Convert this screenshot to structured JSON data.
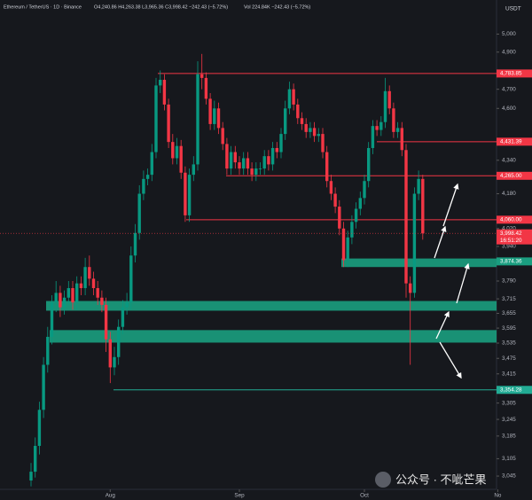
{
  "chart_data": {
    "type": "candlestick",
    "title": "Ethereum / TetherUS · 1D · Binance",
    "ohlc_header": "O4,240.86 H4,263.38 L3,965.36 C3,998.42 −242.43 (−5.72%)",
    "volume_header": "Vol 224.84K −242.43 (−5.72%)",
    "currency": "USDT",
    "log_scale": true,
    "up_color": "#089981",
    "down_color": "#f23645",
    "ylim": [
      3000,
      5195
    ],
    "yticks": [
      {
        "value": 5000,
        "label": "5,000"
      },
      {
        "value": 4900,
        "label": "4,900"
      },
      {
        "value": 4700,
        "label": "4,700"
      },
      {
        "value": 4600,
        "label": "4,600"
      },
      {
        "value": 4340,
        "label": "4,340"
      },
      {
        "value": 4180,
        "label": "4,180"
      },
      {
        "value": 4020,
        "label": "4,020"
      },
      {
        "value": 3940,
        "label": "3,940"
      },
      {
        "value": 3790,
        "label": "3,790"
      },
      {
        "value": 3715,
        "label": "3,715"
      },
      {
        "value": 3655,
        "label": "3,655"
      },
      {
        "value": 3595,
        "label": "3,595"
      },
      {
        "value": 3535,
        "label": "3,535"
      },
      {
        "value": 3475,
        "label": "3,475"
      },
      {
        "value": 3415,
        "label": "3,415"
      },
      {
        "value": 3305,
        "label": "3,305"
      },
      {
        "value": 3245,
        "label": "3,245"
      },
      {
        "value": 3185,
        "label": "3,185"
      },
      {
        "value": 3105,
        "label": "3,105"
      },
      {
        "value": 3045,
        "label": "3,045"
      }
    ],
    "xticks": [
      {
        "value": 19,
        "label": "Aug"
      },
      {
        "value": 50,
        "label": "Sep"
      },
      {
        "value": 80,
        "label": "Oct"
      },
      {
        "value": 112,
        "label": "No"
      }
    ],
    "open": [
      3030,
      3060,
      3150,
      3280,
      3450,
      3560,
      3700,
      3740,
      3680,
      3720,
      3760,
      3700,
      3780,
      3760,
      3850,
      3800,
      3760,
      3720,
      3690,
      3550,
      3440,
      3480,
      3600,
      3680,
      3700,
      3900,
      4000,
      4180,
      4250,
      4270,
      4380,
      4720,
      4750,
      4620,
      4430,
      4350,
      4410,
      4280,
      4080,
      4270,
      4320,
      4780,
      4760,
      4650,
      4520,
      4600,
      4500,
      4420,
      4300,
      4380,
      4330,
      4300,
      4350,
      4300,
      4270,
      4300,
      4300,
      4360,
      4320,
      4400,
      4380,
      4470,
      4600,
      4700,
      4620,
      4550,
      4520,
      4480,
      4500,
      4460,
      4470,
      4380,
      4240,
      4180,
      4120,
      4020,
      3880,
      3980,
      4050,
      4110,
      4160,
      4240,
      4400,
      4510,
      4490,
      4530,
      4690,
      4600,
      4480,
      4500,
      4390,
      3780,
      3740,
      4180,
      4250
    ],
    "high": [
      3090,
      3180,
      3310,
      3480,
      3600,
      3730,
      3790,
      3770,
      3750,
      3790,
      3790,
      3810,
      3810,
      3890,
      3900,
      3830,
      3790,
      3750,
      3720,
      3580,
      3520,
      3630,
      3710,
      3740,
      3940,
      4040,
      4220,
      4290,
      4300,
      4420,
      4760,
      4800,
      4780,
      4650,
      4470,
      4450,
      4440,
      4310,
      4300,
      4360,
      4850,
      4890,
      4790,
      4680,
      4640,
      4630,
      4530,
      4450,
      4410,
      4410,
      4360,
      4380,
      4380,
      4330,
      4330,
      4330,
      4390,
      4390,
      4430,
      4430,
      4500,
      4640,
      4740,
      4730,
      4650,
      4580,
      4550,
      4530,
      4530,
      4500,
      4500,
      4410,
      4270,
      4210,
      4150,
      4050,
      4010,
      4080,
      4140,
      4190,
      4270,
      4430,
      4540,
      4540,
      4560,
      4760,
      4720,
      4630,
      4530,
      4530,
      4420,
      3810,
      4210,
      4290,
      4270
    ],
    "low": [
      3010,
      3040,
      3120,
      3250,
      3420,
      3530,
      3660,
      3640,
      3650,
      3690,
      3670,
      3670,
      3730,
      3730,
      3770,
      3730,
      3690,
      3660,
      3500,
      3380,
      3410,
      3450,
      3570,
      3650,
      3670,
      3870,
      3970,
      4150,
      4220,
      4240,
      4350,
      4680,
      4590,
      4400,
      4320,
      4320,
      4250,
      4050,
      4050,
      4240,
      4290,
      4700,
      4620,
      4490,
      4490,
      4470,
      4390,
      4270,
      4270,
      4300,
      4270,
      4270,
      4270,
      4240,
      4240,
      4270,
      4270,
      4290,
      4290,
      4350,
      4350,
      4440,
      4570,
      4590,
      4520,
      4490,
      4450,
      4450,
      4430,
      4430,
      4350,
      4210,
      4150,
      4090,
      3990,
      3850,
      3850,
      3950,
      4020,
      4080,
      4130,
      4210,
      4370,
      4460,
      4460,
      4500,
      4570,
      4450,
      4450,
      4360,
      3720,
      3450,
      3720,
      4150,
      3970
    ],
    "close": [
      3060,
      3150,
      3280,
      3450,
      3560,
      3700,
      3740,
      3680,
      3720,
      3760,
      3700,
      3780,
      3760,
      3850,
      3800,
      3760,
      3720,
      3690,
      3550,
      3440,
      3480,
      3600,
      3680,
      3700,
      3900,
      4000,
      4180,
      4250,
      4270,
      4380,
      4720,
      4750,
      4620,
      4430,
      4350,
      4410,
      4280,
      4080,
      4270,
      4320,
      4780,
      4760,
      4650,
      4520,
      4600,
      4500,
      4420,
      4300,
      4380,
      4330,
      4300,
      4350,
      4300,
      4270,
      4300,
      4300,
      4360,
      4320,
      4400,
      4380,
      4470,
      4600,
      4700,
      4620,
      4550,
      4520,
      4480,
      4500,
      4460,
      4470,
      4380,
      4240,
      4180,
      4120,
      4020,
      3880,
      3980,
      4050,
      4110,
      4160,
      4240,
      4400,
      4510,
      4490,
      4530,
      4690,
      4600,
      4480,
      4500,
      4390,
      3780,
      3740,
      4180,
      4250,
      3998.42
    ],
    "levels": [
      {
        "value": 4783.85,
        "label": "4,783.85",
        "color": "#f23645"
      },
      {
        "value": 4431.39,
        "label": "4,431.39",
        "color": "#f23645"
      },
      {
        "value": 4265,
        "label": "4,265.00",
        "color": "#f23645"
      },
      {
        "value": 4060,
        "label": "4,060.00",
        "color": "#f23645"
      },
      {
        "value": 3354.28,
        "label": "3,354.28",
        "color": "#22ab94"
      }
    ],
    "zones": [
      {
        "low": 3850,
        "high": 3887,
        "value": 3874.36,
        "label": "3,874.36",
        "color": "#1a9e80"
      },
      {
        "low": 3666,
        "high": 3706,
        "color": "#1a9e80"
      },
      {
        "low": 3537,
        "high": 3587,
        "color": "#1a9e80"
      }
    ],
    "current_price": {
      "value": 3998.42,
      "label": "3,998.42",
      "countdown": "16:51:20",
      "color": "#f23645"
    },
    "watermark": "公众号 · 不呲芒果"
  }
}
